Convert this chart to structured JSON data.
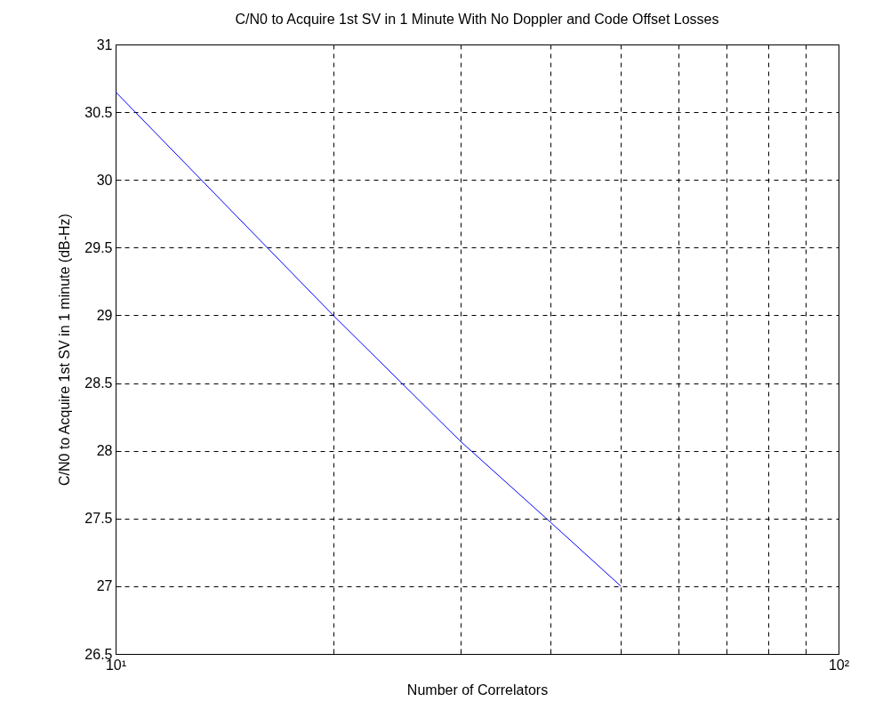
{
  "chart_data": {
    "type": "line",
    "title": "C/N0 to Acquire 1st SV in 1 Minute With No Doppler and Code Offset Losses",
    "xlabel": "Number of Correlators",
    "ylabel": "C/N0 to Acquire 1st SV in 1 minute (dB-Hz)",
    "x": [
      10,
      20,
      30,
      40,
      50
    ],
    "series": [
      {
        "color": "#0000ff",
        "values": [
          30.65,
          29.0,
          28.07,
          27.47,
          27.0
        ]
      }
    ],
    "log": "x",
    "xlim": [
      10,
      100
    ],
    "ylim": [
      26.5,
      31
    ],
    "xticks": [
      {
        "value": 10,
        "label": "10¹"
      },
      {
        "value": 20,
        "label": null
      },
      {
        "value": 30,
        "label": null
      },
      {
        "value": 40,
        "label": null
      },
      {
        "value": 50,
        "label": null
      },
      {
        "value": 60,
        "label": null
      },
      {
        "value": 70,
        "label": null
      },
      {
        "value": 80,
        "label": null
      },
      {
        "value": 90,
        "label": null
      },
      {
        "value": 100,
        "label": "10²"
      }
    ],
    "yticks": [
      26.5,
      27,
      27.5,
      28,
      28.5,
      29,
      29.5,
      30,
      30.5,
      31
    ],
    "grid": true,
    "line_style": "solid"
  }
}
